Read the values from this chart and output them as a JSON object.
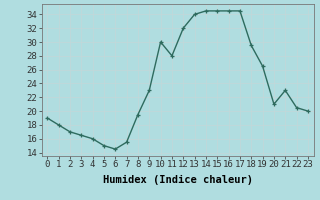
{
  "x": [
    0,
    1,
    2,
    3,
    4,
    5,
    6,
    7,
    8,
    9,
    10,
    11,
    12,
    13,
    14,
    15,
    16,
    17,
    18,
    19,
    20,
    21,
    22,
    23
  ],
  "y": [
    19,
    18,
    17,
    16.5,
    16,
    15,
    14.5,
    15.5,
    19.5,
    23,
    30,
    28,
    32,
    34,
    34.5,
    34.5,
    34.5,
    34.5,
    29.5,
    26.5,
    21,
    23,
    20.5,
    20
  ],
  "line_color": "#2e6b5e",
  "marker": "+",
  "bg_color": "#b0dde0",
  "grid_color": "#d8eef0",
  "xlabel": "Humidex (Indice chaleur)",
  "xlim": [
    -0.5,
    23.5
  ],
  "ylim": [
    13.5,
    35.5
  ],
  "yticks": [
    14,
    16,
    18,
    20,
    22,
    24,
    26,
    28,
    30,
    32,
    34
  ],
  "xticks": [
    0,
    1,
    2,
    3,
    4,
    5,
    6,
    7,
    8,
    9,
    10,
    11,
    12,
    13,
    14,
    15,
    16,
    17,
    18,
    19,
    20,
    21,
    22,
    23
  ],
  "label_fontsize": 7.5,
  "tick_fontsize": 6.5
}
